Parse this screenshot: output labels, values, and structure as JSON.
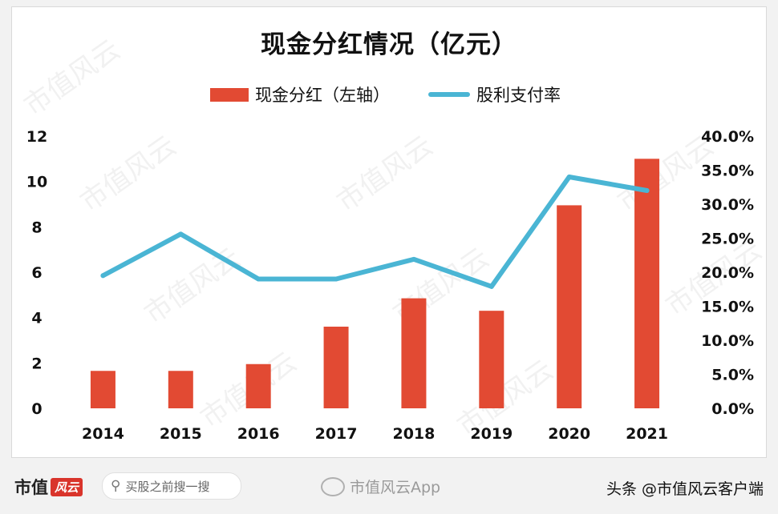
{
  "chart_data": {
    "type": "bar+line",
    "title": "现金分红情况（亿元）",
    "categories": [
      "2014",
      "2015",
      "2016",
      "2017",
      "2018",
      "2019",
      "2020",
      "2021"
    ],
    "series": [
      {
        "name": "现金分红（左轴）",
        "type": "bar",
        "axis": "left",
        "color": "#e24a33",
        "values": [
          1.65,
          1.65,
          1.95,
          3.6,
          4.85,
          4.3,
          8.95,
          11.0
        ]
      },
      {
        "name": "股利支付率",
        "type": "line",
        "axis": "right",
        "color": "#4ab5d4",
        "values": [
          0.195,
          0.256,
          0.19,
          0.19,
          0.219,
          0.179,
          0.34,
          0.32
        ]
      }
    ],
    "y_left": {
      "range": [
        0,
        12
      ],
      "ticks": [
        "0",
        "2",
        "4",
        "6",
        "8",
        "10",
        "12"
      ]
    },
    "y_right": {
      "range": [
        0,
        0.4
      ],
      "ticks": [
        "0.0%",
        "5.0%",
        "10.0%",
        "15.0%",
        "20.0%",
        "25.0%",
        "30.0%",
        "35.0%",
        "40.0%"
      ]
    },
    "grid": false,
    "legend_position": "top"
  },
  "footer": {
    "logo_text": "市值",
    "logo_mark": "风云",
    "search_placeholder": "买股之前搜一搜",
    "weibo_text": "市值风云App",
    "credit": "头条 @市值风云客户端"
  },
  "watermark_text": "市值风云",
  "colors": {
    "bar": "#e24a33",
    "line": "#4ab5d4"
  }
}
